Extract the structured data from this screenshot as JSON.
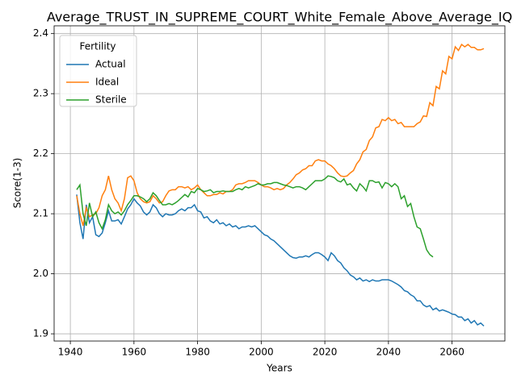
{
  "chart_data": {
    "type": "line",
    "title": "Average_TRUST_IN_SUPREME_COURT_White_Female_Above_Average_IQ",
    "x_label": "Years",
    "y_label": "Score(1-3)",
    "legend_title": "Fertility",
    "legend": "upper left",
    "grid": true,
    "xlim": [
      1934.9,
      2076.6
    ],
    "ylim": [
      1.888,
      2.413
    ],
    "xticks": [
      1940,
      1960,
      1980,
      2000,
      2020,
      2040,
      2060
    ],
    "yticks": [
      1.9,
      {
        "value": 2,
        "label": "2.0"
      },
      2.1,
      2.2,
      2.3,
      2.4
    ],
    "x": [
      1942,
      1943,
      1944,
      1945,
      1946,
      1947,
      1948,
      1949,
      1950,
      1951,
      1952,
      1953,
      1954,
      1955,
      1956,
      1957,
      1958,
      1959,
      1960,
      1961,
      1962,
      1963,
      1964,
      1965,
      1966,
      1967,
      1968,
      1969,
      1970,
      1971,
      1972,
      1973,
      1974,
      1975,
      1976,
      1977,
      1978,
      1979,
      1980,
      1981,
      1982,
      1983,
      1984,
      1985,
      1986,
      1987,
      1988,
      1989,
      1990,
      1991,
      1992,
      1993,
      1994,
      1995,
      1996,
      1997,
      1998,
      1999,
      2000,
      2001,
      2002,
      2003,
      2004,
      2005,
      2006,
      2007,
      2008,
      2009,
      2010,
      2011,
      2012,
      2013,
      2014,
      2015,
      2016,
      2017,
      2018,
      2019,
      2020,
      2021,
      2022,
      2023,
      2024,
      2025,
      2026,
      2027,
      2028,
      2029,
      2030,
      2031,
      2032,
      2033,
      2034,
      2035,
      2036,
      2037,
      2038,
      2039,
      2040,
      2041,
      2042,
      2043,
      2044,
      2045,
      2046,
      2047,
      2048,
      2049,
      2050,
      2051,
      2052,
      2053,
      2054,
      2055,
      2056,
      2057,
      2058,
      2059,
      2060,
      2061,
      2062,
      2063,
      2064,
      2065,
      2066,
      2067,
      2068,
      2069,
      2070
    ],
    "series": [
      {
        "name": "Actual",
        "color": "#1f77b4",
        "values": [
          2.132,
          2.085,
          2.058,
          2.115,
          2.085,
          2.095,
          2.065,
          2.062,
          2.068,
          2.085,
          2.105,
          2.088,
          2.088,
          2.09,
          2.083,
          2.095,
          2.108,
          2.115,
          2.125,
          2.118,
          2.113,
          2.103,
          2.098,
          2.103,
          2.115,
          2.11,
          2.1,
          2.095,
          2.1,
          2.098,
          2.098,
          2.1,
          2.105,
          2.108,
          2.105,
          2.11,
          2.11,
          2.115,
          2.105,
          2.103,
          2.093,
          2.095,
          2.088,
          2.085,
          2.09,
          2.083,
          2.085,
          2.08,
          2.083,
          2.078,
          2.08,
          2.075,
          2.078,
          2.078,
          2.08,
          2.078,
          2.08,
          2.075,
          2.07,
          2.065,
          2.063,
          2.058,
          2.055,
          2.05,
          2.045,
          2.04,
          2.035,
          2.03,
          2.027,
          2.026,
          2.028,
          2.028,
          2.03,
          2.028,
          2.032,
          2.035,
          2.035,
          2.032,
          2.028,
          2.022,
          2.035,
          2.03,
          2.022,
          2.018,
          2.01,
          2.005,
          1.998,
          1.995,
          1.99,
          1.993,
          1.988,
          1.99,
          1.987,
          1.99,
          1.988,
          1.988,
          1.99,
          1.99,
          1.99,
          1.988,
          1.985,
          1.982,
          1.978,
          1.972,
          1.97,
          1.965,
          1.962,
          1.955,
          1.955,
          1.948,
          1.945,
          1.947,
          1.94,
          1.943,
          1.938,
          1.94,
          1.938,
          1.936,
          1.933,
          1.932,
          1.928,
          1.928,
          1.922,
          1.925,
          1.918,
          1.922,
          1.915,
          1.918,
          1.913
        ]
      },
      {
        "name": "Ideal",
        "color": "#ff7f0e",
        "values": [
          2.13,
          2.1,
          2.08,
          2.11,
          2.095,
          2.098,
          2.1,
          2.11,
          2.13,
          2.14,
          2.163,
          2.14,
          2.125,
          2.118,
          2.105,
          2.125,
          2.16,
          2.163,
          2.155,
          2.135,
          2.125,
          2.12,
          2.118,
          2.12,
          2.13,
          2.125,
          2.118,
          2.12,
          2.13,
          2.138,
          2.14,
          2.14,
          2.145,
          2.145,
          2.143,
          2.145,
          2.14,
          2.143,
          2.148,
          2.14,
          2.135,
          2.13,
          2.13,
          2.132,
          2.132,
          2.135,
          2.133,
          2.137,
          2.137,
          2.14,
          2.148,
          2.15,
          2.15,
          2.152,
          2.155,
          2.155,
          2.155,
          2.152,
          2.148,
          2.145,
          2.145,
          2.143,
          2.14,
          2.142,
          2.14,
          2.142,
          2.148,
          2.152,
          2.158,
          2.165,
          2.168,
          2.173,
          2.175,
          2.18,
          2.18,
          2.188,
          2.19,
          2.188,
          2.188,
          2.183,
          2.18,
          2.175,
          2.168,
          2.163,
          2.162,
          2.163,
          2.168,
          2.172,
          2.183,
          2.19,
          2.203,
          2.207,
          2.222,
          2.228,
          2.243,
          2.245,
          2.257,
          2.255,
          2.26,
          2.255,
          2.257,
          2.25,
          2.252,
          2.245,
          2.245,
          2.245,
          2.245,
          2.25,
          2.253,
          2.263,
          2.262,
          2.285,
          2.28,
          2.312,
          2.308,
          2.338,
          2.333,
          2.362,
          2.358,
          2.378,
          2.372,
          2.382,
          2.378,
          2.382,
          2.377,
          2.377,
          2.373,
          2.373,
          2.375
        ]
      },
      {
        "name": "Sterile",
        "color": "#2ca02c",
        "values": [
          2.14,
          2.148,
          2.1,
          2.08,
          2.118,
          2.095,
          2.103,
          2.085,
          2.075,
          2.09,
          2.115,
          2.105,
          2.1,
          2.103,
          2.098,
          2.105,
          2.115,
          2.122,
          2.13,
          2.13,
          2.128,
          2.125,
          2.12,
          2.125,
          2.135,
          2.13,
          2.122,
          2.115,
          2.115,
          2.117,
          2.115,
          2.118,
          2.122,
          2.127,
          2.132,
          2.128,
          2.137,
          2.135,
          2.142,
          2.14,
          2.137,
          2.138,
          2.14,
          2.135,
          2.137,
          2.137,
          2.138,
          2.137,
          2.137,
          2.137,
          2.14,
          2.142,
          2.14,
          2.145,
          2.143,
          2.145,
          2.147,
          2.15,
          2.148,
          2.148,
          2.15,
          2.15,
          2.152,
          2.152,
          2.15,
          2.148,
          2.147,
          2.145,
          2.143,
          2.145,
          2.145,
          2.143,
          2.14,
          2.145,
          2.15,
          2.155,
          2.155,
          2.155,
          2.158,
          2.163,
          2.162,
          2.16,
          2.155,
          2.153,
          2.158,
          2.148,
          2.15,
          2.143,
          2.138,
          2.15,
          2.145,
          2.138,
          2.155,
          2.155,
          2.152,
          2.153,
          2.143,
          2.152,
          2.15,
          2.145,
          2.15,
          2.145,
          2.125,
          2.13,
          2.112,
          2.117,
          2.095,
          2.078,
          2.075,
          2.058,
          2.04,
          2.032,
          2.028,
          null,
          null,
          null,
          null,
          null,
          null,
          null,
          null,
          null,
          null,
          null,
          null,
          null,
          null,
          null,
          null
        ]
      }
    ]
  }
}
